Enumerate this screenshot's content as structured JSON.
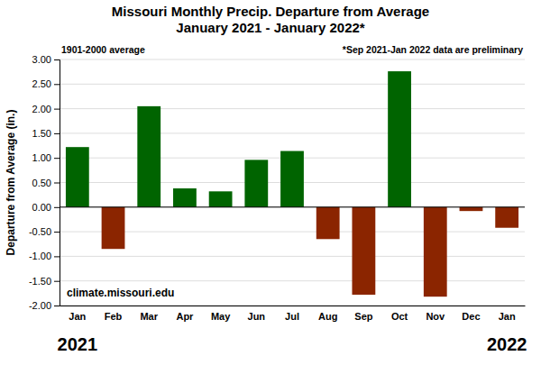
{
  "chart_data": {
    "type": "bar",
    "title": "Missouri Monthly Precip. Departure from Average",
    "subtitle": "January 2021 - January 2022*",
    "ylabel": "Departure from Average (in.)",
    "categories": [
      "Jan",
      "Feb",
      "Mar",
      "Apr",
      "May",
      "Jun",
      "Jul",
      "Aug",
      "Sep",
      "Oct",
      "Nov",
      "Dec",
      "Jan"
    ],
    "values": [
      1.22,
      -0.85,
      2.05,
      0.38,
      0.32,
      0.96,
      1.14,
      -0.65,
      -1.78,
      2.76,
      -1.82,
      -0.08,
      -0.42
    ],
    "colors": [
      "#006400",
      "#8B2500",
      "#006400",
      "#006400",
      "#006400",
      "#006400",
      "#006400",
      "#8B2500",
      "#8B2500",
      "#006400",
      "#8B2500",
      "#8B2500",
      "#8B2500"
    ],
    "ylim": [
      -2.0,
      3.0
    ],
    "yticks": [
      {
        "value": -2.0,
        "label": "-2.00"
      },
      {
        "value": -1.5,
        "label": "-1.50"
      },
      {
        "value": -1.0,
        "label": "-1.00"
      },
      {
        "value": -0.5,
        "label": "-0.50"
      },
      {
        "value": 0.0,
        "label": "0.00"
      },
      {
        "value": 0.5,
        "label": "0.50"
      },
      {
        "value": 1.0,
        "label": "1.00"
      },
      {
        "value": 1.5,
        "label": "1.50"
      },
      {
        "value": 2.0,
        "label": "2.00"
      },
      {
        "value": 2.5,
        "label": "2.50"
      },
      {
        "value": 3.0,
        "label": "3.00"
      }
    ],
    "annotations": [
      "1901-2000 average",
      "*Sep 2021-Jan 2022 data are preliminary",
      "climate.missouri.edu",
      "2021",
      "2022"
    ],
    "grid": true
  }
}
